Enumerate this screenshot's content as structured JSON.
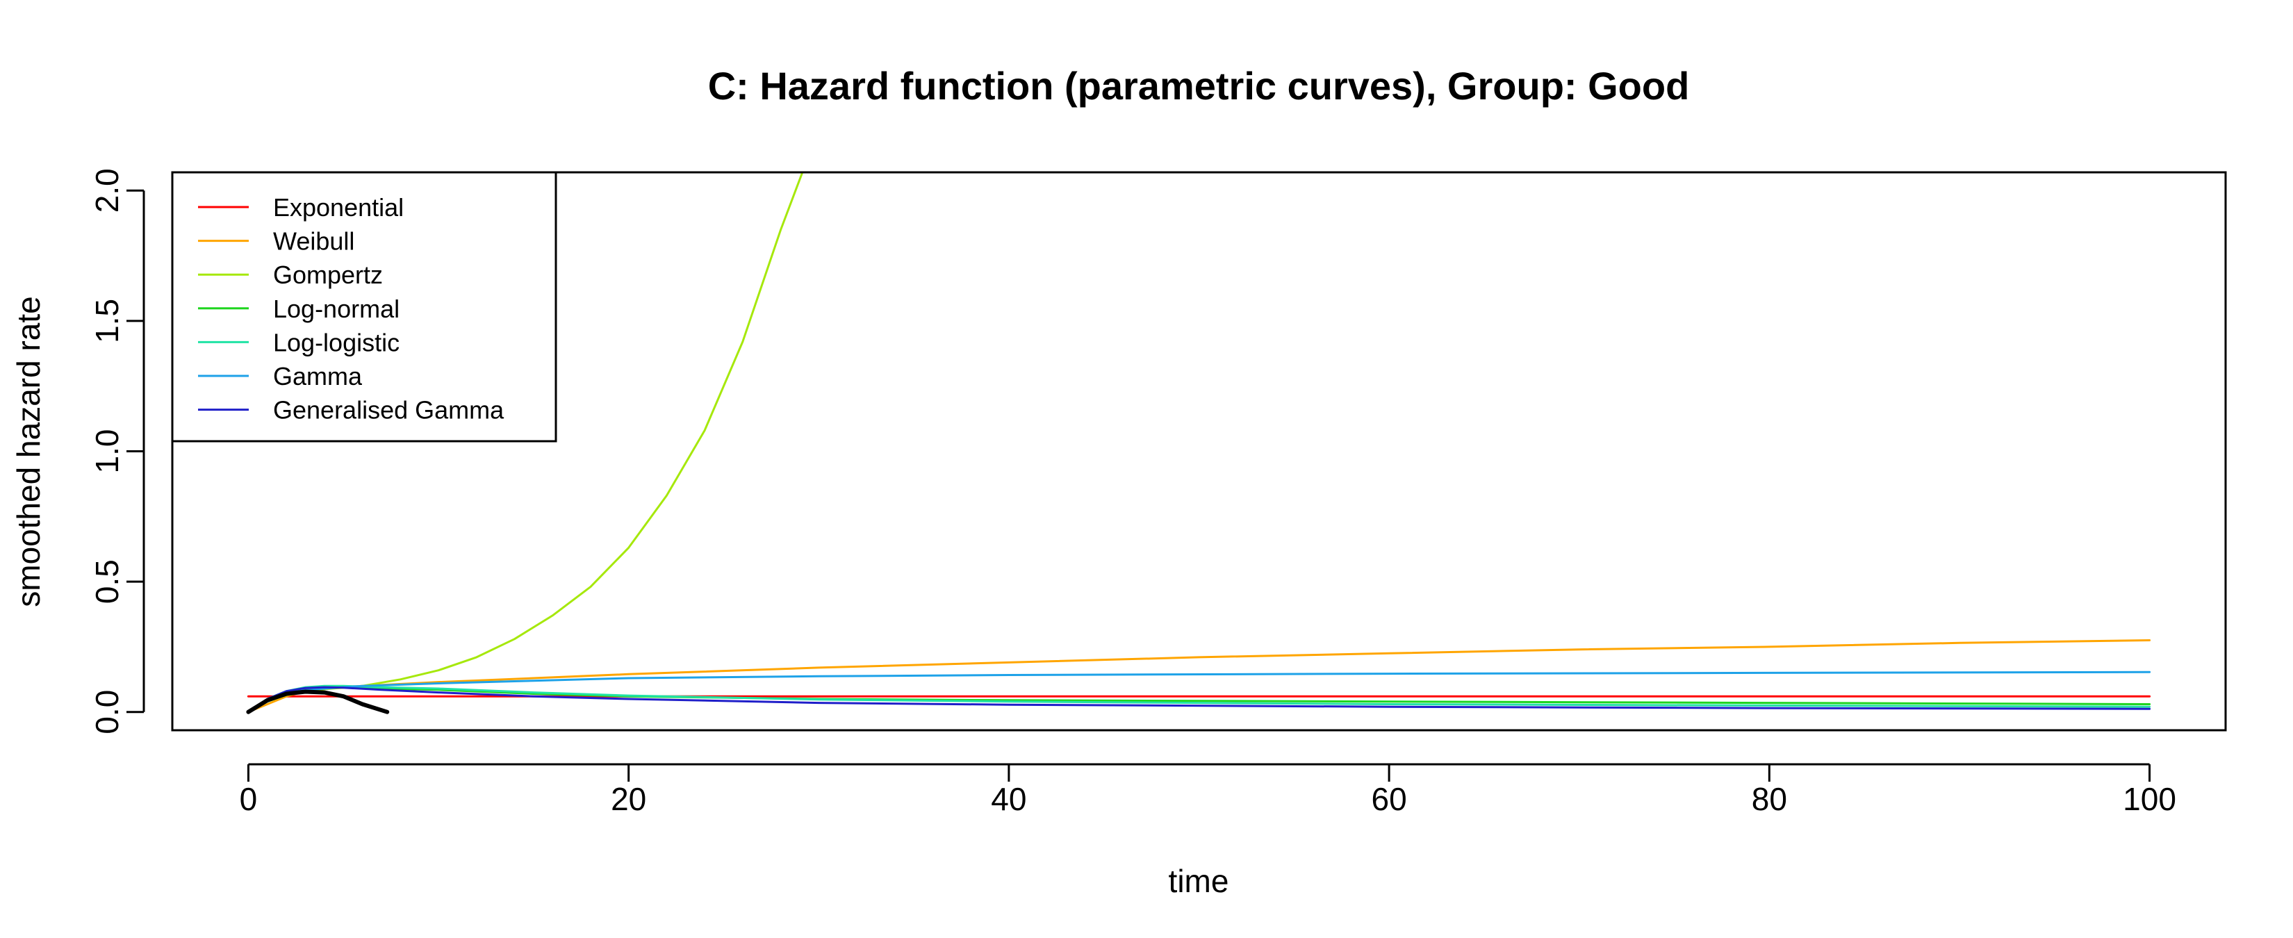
{
  "chart_data": {
    "type": "line",
    "title": "C: Hazard function (parametric curves), Group: Good",
    "xlabel": "time",
    "ylabel": "smoothed hazard rate",
    "xlim": [
      -4,
      104
    ],
    "ylim": [
      -0.07,
      2.07
    ],
    "x_ticks": [
      0,
      20,
      40,
      60,
      80,
      100
    ],
    "y_ticks": [
      0.0,
      0.5,
      1.0,
      1.5,
      2.0
    ],
    "x_tick_labels": [
      "0",
      "20",
      "40",
      "60",
      "80",
      "100"
    ],
    "y_tick_labels": [
      "0.0",
      "0.5",
      "1.0",
      "1.5",
      "2.0"
    ],
    "legend_position": "top-left",
    "series": [
      {
        "name": "Exponential",
        "color": "#FF0000",
        "width": 3,
        "x": [
          0,
          100
        ],
        "y": [
          0.06,
          0.06
        ]
      },
      {
        "name": "Weibull",
        "color": "#FFA500",
        "width": 3,
        "x": [
          0,
          1,
          2,
          3,
          4,
          6,
          10,
          15,
          20,
          30,
          40,
          50,
          60,
          70,
          80,
          90,
          100
        ],
        "y": [
          0.0,
          0.03,
          0.06,
          0.08,
          0.09,
          0.1,
          0.115,
          0.13,
          0.145,
          0.17,
          0.19,
          0.21,
          0.225,
          0.24,
          0.25,
          0.265,
          0.275
        ]
      },
      {
        "name": "Gompertz",
        "color": "#A6E80C",
        "width": 3,
        "x": [
          0,
          1,
          2,
          3,
          4,
          5,
          6,
          8,
          10,
          12,
          14,
          16,
          18,
          20,
          22,
          24,
          26,
          28,
          29.3
        ],
        "y": [
          0.0,
          0.04,
          0.065,
          0.08,
          0.088,
          0.093,
          0.1,
          0.125,
          0.16,
          0.21,
          0.28,
          0.37,
          0.48,
          0.63,
          0.83,
          1.08,
          1.42,
          1.85,
          2.1
        ]
      },
      {
        "name": "Log-normal",
        "color": "#1FD51F",
        "width": 3,
        "x": [
          0,
          1,
          2,
          3,
          4,
          5,
          7,
          10,
          15,
          20,
          30,
          40,
          60,
          80,
          100
        ],
        "y": [
          0.0,
          0.05,
          0.08,
          0.09,
          0.095,
          0.095,
          0.09,
          0.085,
          0.07,
          0.06,
          0.05,
          0.045,
          0.04,
          0.035,
          0.03
        ]
      },
      {
        "name": "Log-logistic",
        "color": "#21E3A5",
        "width": 3,
        "x": [
          0,
          1,
          2,
          3,
          4,
          5,
          7,
          10,
          15,
          20,
          30,
          40,
          60,
          80,
          100
        ],
        "y": [
          0.0,
          0.05,
          0.08,
          0.095,
          0.1,
          0.1,
          0.095,
          0.09,
          0.075,
          0.063,
          0.048,
          0.04,
          0.03,
          0.025,
          0.02
        ]
      },
      {
        "name": "Gamma",
        "color": "#1EA2E8",
        "width": 3,
        "x": [
          0,
          1,
          2,
          3,
          4,
          6,
          10,
          15,
          20,
          30,
          40,
          60,
          80,
          100
        ],
        "y": [
          0.0,
          0.04,
          0.07,
          0.085,
          0.09,
          0.1,
          0.11,
          0.12,
          0.13,
          0.137,
          0.142,
          0.147,
          0.15,
          0.153
        ]
      },
      {
        "name": "Generalised Gamma",
        "color": "#1F1FC9",
        "width": 3,
        "x": [
          0,
          1,
          2,
          3,
          4,
          5,
          7,
          10,
          15,
          20,
          30,
          40,
          60,
          80,
          100
        ],
        "y": [
          0.0,
          0.05,
          0.08,
          0.092,
          0.095,
          0.093,
          0.085,
          0.075,
          0.06,
          0.05,
          0.035,
          0.028,
          0.02,
          0.015,
          0.012
        ]
      },
      {
        "color": "#000000",
        "width": 6,
        "x": [
          0,
          1,
          2,
          3,
          4,
          5,
          6,
          7.3
        ],
        "y": [
          0.0,
          0.045,
          0.07,
          0.078,
          0.075,
          0.06,
          0.03,
          0.0
        ]
      }
    ]
  }
}
